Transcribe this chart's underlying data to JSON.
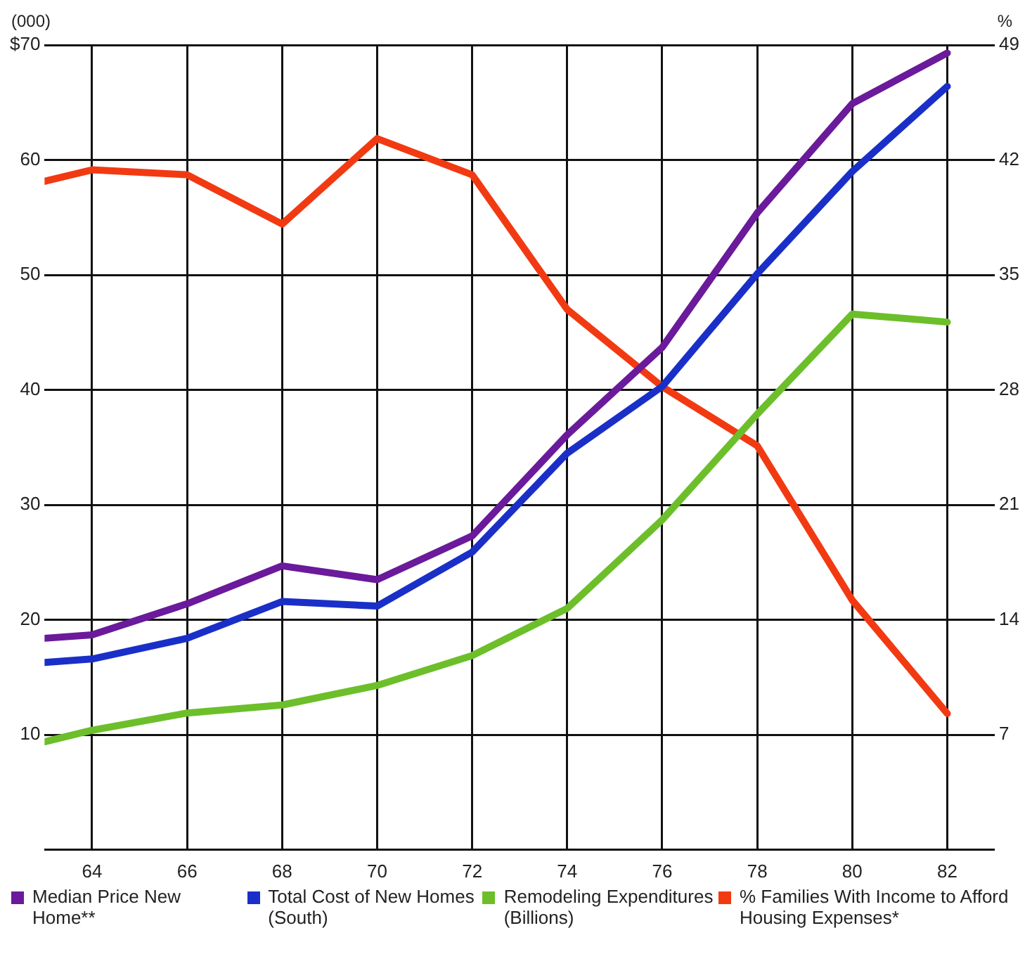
{
  "chart_data": {
    "type": "line",
    "ylabel": "(000)",
    "y2label": "%",
    "x": [
      63,
      64,
      66,
      68,
      70,
      72,
      74,
      76,
      78,
      80,
      82
    ],
    "xlim": [
      63,
      83
    ],
    "xticks": [
      64,
      66,
      68,
      70,
      72,
      74,
      76,
      78,
      80,
      82
    ],
    "ylim": [
      0,
      70
    ],
    "yticks": [
      {
        "value": 0,
        "label": null
      },
      10,
      20,
      30,
      40,
      50,
      60,
      {
        "value": 70,
        "label": "$70"
      }
    ],
    "y2lim": [
      0,
      49
    ],
    "y2ticks": [
      7,
      14,
      21,
      28,
      35,
      42,
      49
    ],
    "series": [
      {
        "name": "Median Price New Home**",
        "color": "#6a1a9a",
        "values": [
          18.4,
          18.7,
          21.4,
          24.7,
          23.5,
          27.3,
          36.1,
          43.7,
          55.4,
          64.9,
          69.3
        ]
      },
      {
        "name": "Total Cost of New Homes (South)",
        "color": "#1a2fc8",
        "values": [
          16.3,
          16.6,
          18.4,
          21.6,
          21.2,
          25.9,
          34.5,
          40.3,
          50.1,
          59,
          66.4
        ]
      },
      {
        "name": "Remodeling Expenditures (Billions)",
        "color": "#6cbf2a",
        "values": [
          9.4,
          10.4,
          11.9,
          12.6,
          14.3,
          16.9,
          21,
          28.7,
          37.9,
          46.6,
          45.9
        ]
      },
      {
        "name": "% Families With Income to Afford Housing Expenses*",
        "color": "#f23a12",
        "axis": "y2",
        "values": [
          40.7,
          41.4,
          41.1,
          38.1,
          43.3,
          41.1,
          32.9,
          28.2,
          24.6,
          15.2,
          8.3
        ]
      }
    ],
    "grid": true,
    "legend": "bottom",
    "marker": "none",
    "line_style": "solid"
  }
}
